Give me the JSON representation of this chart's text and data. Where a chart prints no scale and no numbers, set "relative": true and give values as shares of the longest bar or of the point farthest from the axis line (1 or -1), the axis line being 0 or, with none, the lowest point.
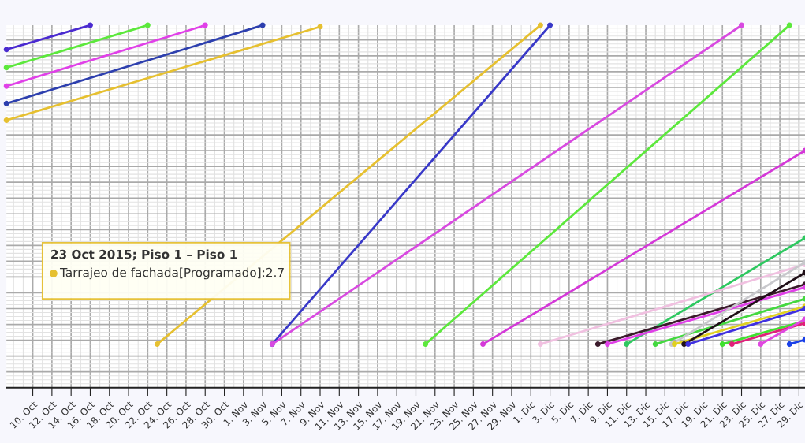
{
  "chart_data": {
    "type": "line",
    "relative": true,
    "marker": "circle",
    "line_style": "solid",
    "grid": true,
    "xlim": [
      "2015-10-07T06:00",
      "2015-12-29T15:00"
    ],
    "xticks": [
      {
        "value": "2015-10-10",
        "label": "10. Oct"
      },
      {
        "value": "2015-10-12",
        "label": "12. Oct"
      },
      {
        "value": "2015-10-14",
        "label": "14. Oct"
      },
      {
        "value": "2015-10-16",
        "label": "16. Oct"
      },
      {
        "value": "2015-10-18",
        "label": "18. Oct"
      },
      {
        "value": "2015-10-20",
        "label": "20. Oct"
      },
      {
        "value": "2015-10-22",
        "label": "22. Oct"
      },
      {
        "value": "2015-10-24",
        "label": "24. Oct"
      },
      {
        "value": "2015-10-26",
        "label": "26. Oct"
      },
      {
        "value": "2015-10-28",
        "label": "28. Oct"
      },
      {
        "value": "2015-10-30",
        "label": "30. Oct"
      },
      {
        "value": "2015-11-01",
        "label": "1. Nov"
      },
      {
        "value": "2015-11-03",
        "label": "3. Nov"
      },
      {
        "value": "2015-11-05",
        "label": "5. Nov"
      },
      {
        "value": "2015-11-07",
        "label": "7. Nov"
      },
      {
        "value": "2015-11-09",
        "label": "9. Nov"
      },
      {
        "value": "2015-11-11",
        "label": "11. Nov"
      },
      {
        "value": "2015-11-13",
        "label": "13. Nov"
      },
      {
        "value": "2015-11-15",
        "label": "15. Nov"
      },
      {
        "value": "2015-11-17",
        "label": "17. Nov"
      },
      {
        "value": "2015-11-19",
        "label": "19. Nov"
      },
      {
        "value": "2015-11-21",
        "label": "21. Nov"
      },
      {
        "value": "2015-11-23",
        "label": "23. Nov"
      },
      {
        "value": "2015-11-25",
        "label": "25. Nov"
      },
      {
        "value": "2015-11-27",
        "label": "27. Nov"
      },
      {
        "value": "2015-11-29",
        "label": "29. Nov"
      },
      {
        "value": "2015-12-01",
        "label": "1. Dic"
      },
      {
        "value": "2015-12-03",
        "label": "3. Dic"
      },
      {
        "value": "2015-12-05",
        "label": "5. Dic"
      },
      {
        "value": "2015-12-07",
        "label": "7. Dic"
      },
      {
        "value": "2015-12-09",
        "label": "9. Dic"
      },
      {
        "value": "2015-12-11",
        "label": "11. Dic"
      },
      {
        "value": "2015-12-13",
        "label": "13. Dic"
      },
      {
        "value": "2015-12-15",
        "label": "15. Dic"
      },
      {
        "value": "2015-12-17",
        "label": "17. Dic"
      },
      {
        "value": "2015-12-19",
        "label": "19. Dic"
      },
      {
        "value": "2015-12-21",
        "label": "21. Dic"
      },
      {
        "value": "2015-12-23",
        "label": "23. Dic"
      },
      {
        "value": "2015-12-25",
        "label": "25. Dic"
      },
      {
        "value": "2015-12-27",
        "label": "27. Dic"
      },
      {
        "value": "2015-12-29",
        "label": "29. Dic"
      }
    ],
    "annotations": [
      "23 Oct 2015; Piso 1 – Piso 1",
      "Tarrajeo de fachada[Programado]:2.7"
    ],
    "series": [
      {
        "color": "#4a2ad0",
        "x": [
          "2015-10-07T06:00",
          "2015-10-16"
        ],
        "values": [
          0.933,
          1.0
        ]
      },
      {
        "color": "#5ce83c",
        "x": [
          "2015-10-07T06:00",
          "2015-10-22"
        ],
        "values": [
          0.883,
          1.0
        ]
      },
      {
        "color": "#e040e8",
        "x": [
          "2015-10-07T06:00",
          "2015-10-28"
        ],
        "values": [
          0.832,
          1.0
        ]
      },
      {
        "color": "#2d3fae",
        "x": [
          "2015-10-07T06:00",
          "2015-11-03"
        ],
        "values": [
          0.784,
          1.0
        ]
      },
      {
        "color": "#e6c030",
        "x": [
          "2015-10-07T06:00",
          "2015-11-09"
        ],
        "values": [
          0.738,
          0.996
        ]
      },
      {
        "color": "#e6c030",
        "x": [
          "2015-10-23",
          "2015-12-02"
        ],
        "values": [
          0.12,
          1.0
        ]
      },
      {
        "color": "#3838c8",
        "x": [
          "2015-11-04",
          "2015-12-03"
        ],
        "values": [
          0.12,
          1.0
        ]
      },
      {
        "color": "#d84ae0",
        "x": [
          "2015-11-04",
          "2015-12-23"
        ],
        "values": [
          0.12,
          1.0
        ]
      },
      {
        "color": "#5ce83c",
        "x": [
          "2015-11-20",
          "2015-12-28"
        ],
        "values": [
          0.12,
          1.0
        ]
      },
      {
        "color": "#d438d8",
        "x": [
          "2015-11-26",
          "2015-12-29T15:00"
        ],
        "values": [
          0.12,
          0.654
        ]
      },
      {
        "color": "#2ec860",
        "x": [
          "2015-12-11",
          "2015-12-29T15:00"
        ],
        "values": [
          0.12,
          0.413
        ]
      },
      {
        "color": "#f0c0e0",
        "x": [
          "2015-12-02",
          "2015-12-29T15:00"
        ],
        "values": [
          0.12,
          0.34
        ]
      },
      {
        "color": "#3a1a2a",
        "x": [
          "2015-12-08",
          "2015-12-29T15:00"
        ],
        "values": [
          0.12,
          0.285
        ]
      },
      {
        "color": "#e040e8",
        "x": [
          "2015-12-09",
          "2015-12-29T15:00"
        ],
        "values": [
          0.12,
          0.277
        ]
      },
      {
        "color": "#44d840",
        "x": [
          "2015-12-14",
          "2015-12-29T15:00"
        ],
        "values": [
          0.12,
          0.245
        ]
      },
      {
        "color": "#c8c8cc",
        "x": [
          "2015-12-15T17:00",
          "2015-12-29T15:00"
        ],
        "values": [
          0.12,
          0.346
        ]
      },
      {
        "color": "#e0d020",
        "x": [
          "2015-12-16",
          "2015-12-29T15:00"
        ],
        "values": [
          0.12,
          0.224
        ]
      },
      {
        "color": "#201018",
        "x": [
          "2015-12-17",
          "2015-12-29T15:00"
        ],
        "values": [
          0.12,
          0.317
        ]
      },
      {
        "color": "#4030e0",
        "x": [
          "2015-12-17T10:00",
          "2015-12-29T15:00"
        ],
        "values": [
          0.12,
          0.218
        ]
      },
      {
        "color": "#40e030",
        "x": [
          "2015-12-21",
          "2015-12-29T15:00"
        ],
        "values": [
          0.12,
          0.184
        ]
      },
      {
        "color": "#e0207a",
        "x": [
          "2015-12-22",
          "2015-12-29T15:00"
        ],
        "values": [
          0.12,
          0.178
        ]
      },
      {
        "color": "#e048e0",
        "x": [
          "2015-12-25",
          "2015-12-29T15:00"
        ],
        "values": [
          0.12,
          0.189
        ]
      },
      {
        "color": "#1a40e8",
        "x": [
          "2015-12-28",
          "2015-12-29T15:00"
        ],
        "values": [
          0.12,
          0.132
        ]
      }
    ]
  }
}
